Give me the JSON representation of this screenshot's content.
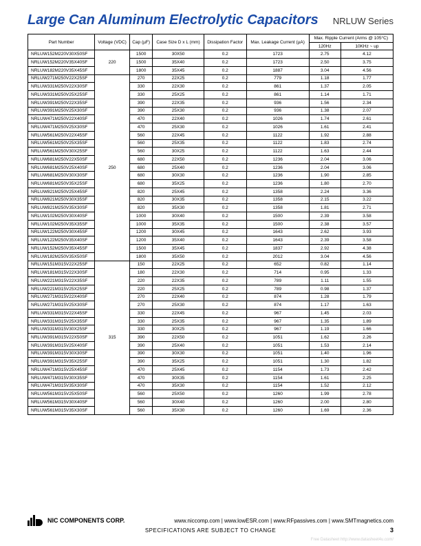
{
  "header": {
    "title": "Large Can Aluminum Electrolytic Capacitors",
    "series": "NRLUW Series"
  },
  "table": {
    "headers": {
      "part_number": "Part Number",
      "voltage": "Voltage (VDC)",
      "cap": "Cap (µF)",
      "case_size": "Case Size D x L (mm)",
      "dissipation": "Dissipation Factor",
      "max_leakage": "Max. Leakage Current (µA)",
      "ripple_title": "Max. Ripple Current (Arms @ 105°C)",
      "ripple_120": "120Hz",
      "ripple_10k": "10KHz ~ up"
    },
    "groups": [
      {
        "voltage": "220",
        "rows": [
          [
            "NRLUW152M220V30X50SF",
            "1500",
            "30X50",
            "0.2",
            "1723",
            "2.75",
            "4.12"
          ],
          [
            "NRLUW152M220V35X40SF",
            "1500",
            "35X40",
            "0.2",
            "1723",
            "2.50",
            "3.75"
          ],
          [
            "NRLUW182M220V35X45SF",
            "1800",
            "35X45",
            "0.2",
            "1887",
            "3.04",
            "4.56"
          ]
        ]
      },
      {
        "voltage": "250",
        "rows": [
          [
            "NRLUW271M250V22X25SF",
            "270",
            "22X25",
            "0.2",
            "779",
            "1.18",
            "1.77"
          ],
          [
            "NRLUW331M250V22X30SF",
            "330",
            "22X30",
            "0.2",
            "861",
            "1.37",
            "2.05"
          ],
          [
            "NRLUW331M250V25X25SF",
            "330",
            "25X25",
            "0.2",
            "861",
            "1.14",
            "1.71"
          ],
          [
            "NRLUW391M250V22X35SF",
            "390",
            "22X35",
            "0.2",
            "936",
            "1.56",
            "2.34"
          ],
          [
            "NRLUW391M250V25X30SF",
            "390",
            "25X30",
            "0.2",
            "936",
            "1.38",
            "2.07"
          ],
          [
            "NRLUW471M250V22X40SF",
            "470",
            "22X40",
            "0.2",
            "1026",
            "1.74",
            "2.61"
          ],
          [
            "NRLUW471M250V25X30SF",
            "470",
            "25X30",
            "0.2",
            "1026",
            "1.61",
            "2.41"
          ],
          [
            "NRLUW561M250V22X45SF",
            "560",
            "22X45",
            "0.2",
            "1122",
            "1.92",
            "2.88"
          ],
          [
            "NRLUW561M250V25X35SF",
            "560",
            "25X35",
            "0.2",
            "1122",
            "1.83",
            "2.74"
          ],
          [
            "NRLUW561M250V30X25SF",
            "560",
            "30X25",
            "0.2",
            "1122",
            "1.63",
            "2.44"
          ],
          [
            "NRLUW681M250V22X50SF",
            "680",
            "22X50",
            "0.2",
            "1236",
            "2.04",
            "3.06"
          ],
          [
            "NRLUW681M250V25X40SF",
            "680",
            "25X40",
            "0.2",
            "1236",
            "2.04",
            "3.06"
          ],
          [
            "NRLUW681M250V30X30SF",
            "680",
            "30X30",
            "0.2",
            "1236",
            "1.90",
            "2.85"
          ],
          [
            "NRLUW681M250V35X25SF",
            "680",
            "35X25",
            "0.2",
            "1236",
            "1.80",
            "2.70"
          ],
          [
            "NRLUW821M250V25X45SF",
            "820",
            "25X45",
            "0.2",
            "1358",
            "2.24",
            "3.36"
          ],
          [
            "NRLUW821M250V30X35SF",
            "820",
            "30X35",
            "0.2",
            "1358",
            "2.15",
            "3.22"
          ],
          [
            "NRLUW821M250V35X30SF",
            "820",
            "35X30",
            "0.2",
            "1358",
            "1.81",
            "2.71"
          ],
          [
            "NRLUW102M250V30X40SF",
            "1000",
            "30X40",
            "0.2",
            "1500",
            "2.39",
            "3.58"
          ],
          [
            "NRLUW102M250V35X35SF",
            "1000",
            "35X35",
            "0.2",
            "1500",
            "2.38",
            "3.57"
          ],
          [
            "NRLUW122M250V30X45SF",
            "1200",
            "30X45",
            "0.2",
            "1643",
            "2.62",
            "3.93"
          ],
          [
            "NRLUW122M250V35X40SF",
            "1200",
            "35X40",
            "0.2",
            "1643",
            "2.39",
            "3.58"
          ],
          [
            "NRLUW152M250V35X45SF",
            "1500",
            "35X45",
            "0.2",
            "1837",
            "2.92",
            "4.38"
          ],
          [
            "NRLUW182M250V35X50SF",
            "1800",
            "35X50",
            "0.2",
            "2012",
            "3.04",
            "4.56"
          ]
        ]
      },
      {
        "voltage": "315",
        "rows": [
          [
            "NRLUW151M315V22X25SF",
            "150",
            "22X25",
            "0.2",
            "652",
            "0.82",
            "1.14"
          ],
          [
            "NRLUW181M315V22X30SF",
            "180",
            "22X30",
            "0.2",
            "714",
            "0.95",
            "1.33"
          ],
          [
            "NRLUW221M315V22X35SF",
            "220",
            "22X35",
            "0.2",
            "789",
            "1.11",
            "1.55"
          ],
          [
            "NRLUW221M315V25X25SF",
            "220",
            "25X25",
            "0.2",
            "789",
            "0.98",
            "1.37"
          ],
          [
            "NRLUW271M315V22X40SF",
            "270",
            "22X40",
            "0.2",
            "874",
            "1.28",
            "1.79"
          ],
          [
            "NRLUW271M315V25X30SF",
            "270",
            "25X30",
            "0.2",
            "874",
            "1.17",
            "1.63"
          ],
          [
            "NRLUW331M315V22X45SF",
            "330",
            "22X45",
            "0.2",
            "967",
            "1.45",
            "2.03"
          ],
          [
            "NRLUW331M315V25X35SF",
            "330",
            "25X35",
            "0.2",
            "967",
            "1.35",
            "1.89"
          ],
          [
            "NRLUW331M315V30X25SF",
            "330",
            "30X25",
            "0.2",
            "967",
            "1.19",
            "1.66"
          ],
          [
            "NRLUW391M315V22X50SF",
            "390",
            "22X50",
            "0.2",
            "1051",
            "1.62",
            "2.26"
          ],
          [
            "NRLUW391M315V25X40SF",
            "390",
            "25X40",
            "0.2",
            "1051",
            "1.53",
            "2.14"
          ],
          [
            "NRLUW391M315V30X30SF",
            "390",
            "30X30",
            "0.2",
            "1051",
            "1.40",
            "1.96"
          ],
          [
            "NRLUW391M315V35X25SF",
            "390",
            "35X25",
            "0.2",
            "1051",
            "1.30",
            "1.82"
          ],
          [
            "NRLUW471M315V25X45SF",
            "470",
            "25X45",
            "0.2",
            "1154",
            "1.73",
            "2.42"
          ],
          [
            "NRLUW471M315V30X35SF",
            "470",
            "30X35",
            "0.2",
            "1154",
            "1.61",
            "2.25"
          ],
          [
            "NRLUW471M315V35X30SF",
            "470",
            "35X30",
            "0.2",
            "1154",
            "1.52",
            "2.12"
          ],
          [
            "NRLUW561M315V25X50SF",
            "560",
            "25X50",
            "0.2",
            "1260",
            "1.99",
            "2.78"
          ],
          [
            "NRLUW561M315V30X40SF",
            "560",
            "30X40",
            "0.2",
            "1260",
            "2.00",
            "2.80"
          ],
          [
            "NRLUW561M315V35X30SF",
            "560",
            "35X30",
            "0.2",
            "1260",
            "1.69",
            "2.36"
          ]
        ]
      }
    ]
  },
  "footer": {
    "company": "NIC COMPONENTS CORP.",
    "links": "www.niccomp.com  |  www.lowESR.com  |  www.RFpassives.com  |  www.SMTmagnetics.com",
    "note": "SPECIFICATIONS ARE SUBJECT TO CHANGE",
    "page": "3",
    "watermark": "Free Datasheet http://www.datasheet4u.com/"
  },
  "style": {
    "title_color": "#1a4ba8",
    "border_color": "#000000",
    "col_widths_pct": [
      22,
      7,
      7,
      10,
      10,
      12,
      16,
      16
    ]
  }
}
